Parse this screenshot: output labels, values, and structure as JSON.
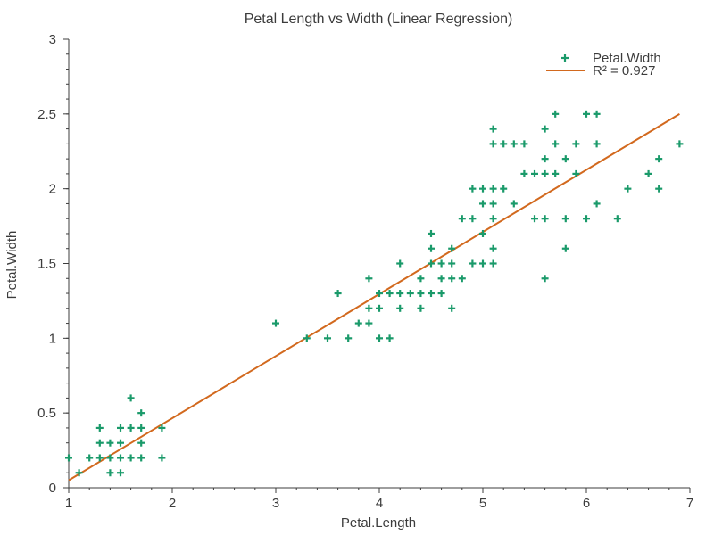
{
  "chart_data": {
    "type": "scatter",
    "title": "Petal Length vs Width (Linear Regression)",
    "xlabel": "Petal.Length",
    "ylabel": "Petal.Width",
    "xlim": [
      1,
      7
    ],
    "ylim": [
      0,
      3
    ],
    "xticks": [
      1,
      2,
      3,
      4,
      5,
      6,
      7
    ],
    "yticks": [
      0,
      0.5,
      1,
      1.5,
      2,
      2.5,
      3
    ],
    "ytick_labels": [
      "0",
      "0.5",
      "1",
      "1.5",
      "2",
      "2.5",
      "3"
    ],
    "grid": false,
    "legend_position": "top-right",
    "series": [
      {
        "name": "Petal.Width",
        "kind": "scatter",
        "marker": "plus",
        "color": "#1a9a6a",
        "points": [
          [
            1.0,
            0.2
          ],
          [
            1.1,
            0.1
          ],
          [
            1.2,
            0.2
          ],
          [
            1.3,
            0.2
          ],
          [
            1.3,
            0.3
          ],
          [
            1.3,
            0.4
          ],
          [
            1.4,
            0.1
          ],
          [
            1.4,
            0.2
          ],
          [
            1.4,
            0.3
          ],
          [
            1.5,
            0.1
          ],
          [
            1.5,
            0.2
          ],
          [
            1.5,
            0.3
          ],
          [
            1.5,
            0.4
          ],
          [
            1.6,
            0.2
          ],
          [
            1.6,
            0.4
          ],
          [
            1.6,
            0.6
          ],
          [
            1.7,
            0.2
          ],
          [
            1.7,
            0.3
          ],
          [
            1.7,
            0.4
          ],
          [
            1.7,
            0.5
          ],
          [
            1.9,
            0.2
          ],
          [
            1.9,
            0.4
          ],
          [
            3.0,
            1.1
          ],
          [
            3.3,
            1.0
          ],
          [
            3.5,
            1.0
          ],
          [
            3.6,
            1.3
          ],
          [
            3.7,
            1.0
          ],
          [
            3.8,
            1.1
          ],
          [
            3.9,
            1.1
          ],
          [
            3.9,
            1.2
          ],
          [
            3.9,
            1.4
          ],
          [
            4.0,
            1.0
          ],
          [
            4.0,
            1.2
          ],
          [
            4.0,
            1.3
          ],
          [
            4.1,
            1.0
          ],
          [
            4.1,
            1.3
          ],
          [
            4.2,
            1.2
          ],
          [
            4.2,
            1.3
          ],
          [
            4.2,
            1.5
          ],
          [
            4.3,
            1.3
          ],
          [
            4.4,
            1.2
          ],
          [
            4.4,
            1.3
          ],
          [
            4.4,
            1.4
          ],
          [
            4.5,
            1.3
          ],
          [
            4.5,
            1.5
          ],
          [
            4.5,
            1.6
          ],
          [
            4.5,
            1.7
          ],
          [
            4.6,
            1.3
          ],
          [
            4.6,
            1.4
          ],
          [
            4.6,
            1.5
          ],
          [
            4.7,
            1.2
          ],
          [
            4.7,
            1.4
          ],
          [
            4.7,
            1.5
          ],
          [
            4.7,
            1.6
          ],
          [
            4.8,
            1.4
          ],
          [
            4.8,
            1.8
          ],
          [
            4.9,
            1.5
          ],
          [
            4.9,
            1.8
          ],
          [
            4.9,
            2.0
          ],
          [
            5.0,
            1.5
          ],
          [
            5.0,
            1.7
          ],
          [
            5.0,
            1.9
          ],
          [
            5.0,
            2.0
          ],
          [
            5.1,
            1.5
          ],
          [
            5.1,
            1.6
          ],
          [
            5.1,
            1.8
          ],
          [
            5.1,
            1.9
          ],
          [
            5.1,
            2.0
          ],
          [
            5.1,
            2.3
          ],
          [
            5.1,
            2.4
          ],
          [
            5.2,
            2.0
          ],
          [
            5.2,
            2.3
          ],
          [
            5.3,
            1.9
          ],
          [
            5.3,
            2.3
          ],
          [
            5.4,
            2.1
          ],
          [
            5.4,
            2.3
          ],
          [
            5.5,
            1.8
          ],
          [
            5.5,
            2.1
          ],
          [
            5.6,
            1.4
          ],
          [
            5.6,
            1.8
          ],
          [
            5.6,
            2.1
          ],
          [
            5.6,
            2.2
          ],
          [
            5.6,
            2.4
          ],
          [
            5.7,
            2.1
          ],
          [
            5.7,
            2.3
          ],
          [
            5.7,
            2.5
          ],
          [
            5.8,
            1.6
          ],
          [
            5.8,
            1.8
          ],
          [
            5.8,
            2.2
          ],
          [
            5.9,
            2.1
          ],
          [
            5.9,
            2.3
          ],
          [
            6.0,
            1.8
          ],
          [
            6.0,
            2.5
          ],
          [
            6.1,
            1.9
          ],
          [
            6.1,
            2.3
          ],
          [
            6.1,
            2.5
          ],
          [
            6.3,
            1.8
          ],
          [
            6.4,
            2.0
          ],
          [
            6.6,
            2.1
          ],
          [
            6.7,
            2.0
          ],
          [
            6.7,
            2.2
          ],
          [
            6.9,
            2.3
          ]
        ]
      },
      {
        "name": "R² = 0.927",
        "kind": "line",
        "color": "#d2691e",
        "points": [
          [
            1.0,
            0.05
          ],
          [
            6.9,
            2.5
          ]
        ]
      }
    ]
  }
}
